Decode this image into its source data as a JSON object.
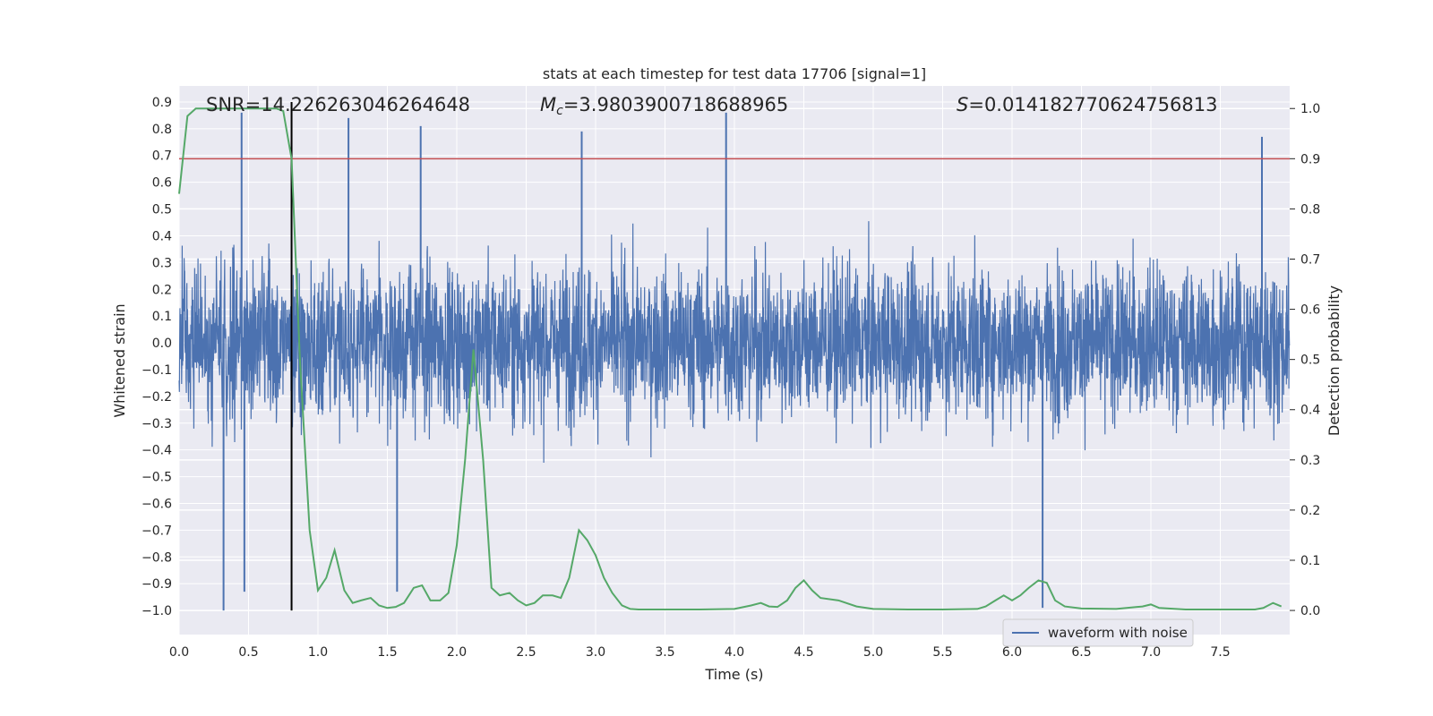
{
  "chart_data": {
    "type": "line",
    "title": "stats at each timestep for test data 17706 [signal=1]",
    "xlabel": "Time (s)",
    "ylabel_left": "Whitened strain",
    "ylabel_right": "Detection probability",
    "xlim": [
      0.0,
      8.0
    ],
    "ylim_left": [
      -1.09,
      0.96
    ],
    "ylim_right": [
      -0.048,
      1.045
    ],
    "x_ticks": [
      "0.0",
      "0.5",
      "1.0",
      "1.5",
      "2.0",
      "2.5",
      "3.0",
      "3.5",
      "4.0",
      "4.5",
      "5.0",
      "5.5",
      "6.0",
      "6.5",
      "7.0",
      "7.5"
    ],
    "y_left_ticks": [
      "0.9",
      "0.8",
      "0.7",
      "0.6",
      "0.5",
      "0.4",
      "0.3",
      "0.2",
      "0.1",
      "0.0",
      "−0.1",
      "−0.2",
      "−0.3",
      "−0.4",
      "−0.5",
      "−0.6",
      "−0.7",
      "−0.8",
      "−0.9",
      "−1.0"
    ],
    "y_right_ticks": [
      "1.0",
      "0.9",
      "0.8",
      "0.7",
      "0.6",
      "0.5",
      "0.4",
      "0.3",
      "0.2",
      "0.1",
      "0.0"
    ],
    "annotations": {
      "snr": "SNR=14.226263046264648",
      "mc_symbol": "M",
      "mc_sub": "c",
      "mc_value": "=3.9803900718688965",
      "s_symbol": "S",
      "s_value": "=0.014182770624756813"
    },
    "threshold": 0.9,
    "marker_time": 0.81,
    "legend": [
      {
        "name": "waveform with noise",
        "color": "#4c72b0"
      }
    ],
    "series": [
      {
        "name": "waveform with noise",
        "axis": "left",
        "color": "#4c72b0",
        "description": "dense noisy waveform, roughly ±0.45 with spikes up to ±1.0",
        "spikes": [
          [
            0.45,
            0.86
          ],
          [
            0.32,
            -1.0
          ],
          [
            0.47,
            -0.93
          ],
          [
            1.22,
            0.84
          ],
          [
            1.57,
            -0.93
          ],
          [
            1.74,
            0.81
          ],
          [
            3.94,
            0.86
          ],
          [
            6.22,
            -0.99
          ],
          [
            2.9,
            0.79
          ],
          [
            7.8,
            0.77
          ]
        ]
      },
      {
        "name": "detection probability",
        "axis": "right",
        "color": "#55a868",
        "x": [
          0.0,
          0.06,
          0.12,
          0.2,
          0.3,
          0.4,
          0.5,
          0.6,
          0.7,
          0.75,
          0.81,
          0.87,
          0.94,
          1.0,
          1.06,
          1.12,
          1.19,
          1.25,
          1.31,
          1.38,
          1.44,
          1.5,
          1.56,
          1.62,
          1.69,
          1.75,
          1.81,
          1.88,
          1.94,
          2.0,
          2.06,
          2.12,
          2.19,
          2.25,
          2.31,
          2.38,
          2.44,
          2.5,
          2.56,
          2.62,
          2.69,
          2.75,
          2.81,
          2.88,
          2.94,
          3.0,
          3.06,
          3.12,
          3.19,
          3.25,
          3.31,
          3.5,
          3.75,
          4.0,
          4.12,
          4.19,
          4.25,
          4.31,
          4.38,
          4.44,
          4.5,
          4.56,
          4.62,
          4.75,
          4.88,
          5.0,
          5.25,
          5.5,
          5.75,
          5.81,
          5.88,
          5.94,
          6.0,
          6.06,
          6.12,
          6.19,
          6.25,
          6.31,
          6.38,
          6.5,
          6.75,
          6.94,
          7.0,
          7.06,
          7.25,
          7.5,
          7.75,
          7.81,
          7.88,
          7.94
        ],
        "y": [
          0.83,
          0.985,
          1.0,
          1.0,
          1.0,
          1.0,
          1.0,
          1.0,
          1.0,
          0.995,
          0.9,
          0.5,
          0.16,
          0.04,
          0.065,
          0.12,
          0.04,
          0.015,
          0.02,
          0.025,
          0.01,
          0.005,
          0.007,
          0.015,
          0.045,
          0.05,
          0.02,
          0.02,
          0.035,
          0.13,
          0.3,
          0.52,
          0.3,
          0.045,
          0.03,
          0.035,
          0.02,
          0.01,
          0.015,
          0.03,
          0.03,
          0.025,
          0.065,
          0.16,
          0.14,
          0.11,
          0.065,
          0.035,
          0.01,
          0.003,
          0.002,
          0.002,
          0.002,
          0.003,
          0.01,
          0.015,
          0.008,
          0.007,
          0.02,
          0.045,
          0.06,
          0.04,
          0.025,
          0.02,
          0.008,
          0.003,
          0.002,
          0.002,
          0.003,
          0.008,
          0.02,
          0.03,
          0.02,
          0.03,
          0.045,
          0.06,
          0.055,
          0.02,
          0.008,
          0.004,
          0.003,
          0.008,
          0.012,
          0.005,
          0.002,
          0.002,
          0.002,
          0.005,
          0.015,
          0.008
        ]
      }
    ],
    "grid": true,
    "legend_position": "lower right",
    "colors": {
      "background": "#eaeaf2",
      "grid": "#ffffff",
      "threshold_line": "#c44e52",
      "marker_line": "#000000"
    }
  }
}
